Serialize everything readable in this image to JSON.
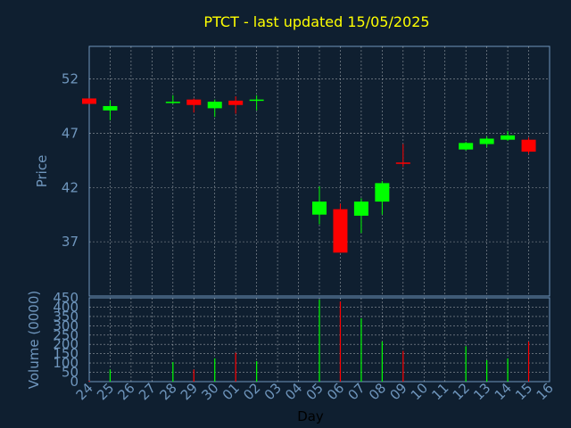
{
  "title": "PTCT - last updated 15/05/2025",
  "colors": {
    "background": "#0f1f30",
    "up": "#00ff00",
    "down": "#ff0000",
    "grid": "#ffffff",
    "text": "#6f96bd",
    "title": "#ffff00"
  },
  "chart_data": [
    {
      "type": "candlestick",
      "ylabel": "Price",
      "ylim": [
        32,
        55
      ],
      "yticks": [
        37,
        42,
        47,
        52
      ],
      "grid": true,
      "days": [
        "24",
        "25",
        "26",
        "27",
        "28",
        "29",
        "30",
        "01",
        "02",
        "03",
        "04",
        "05",
        "06",
        "07",
        "08",
        "09",
        "10",
        "11",
        "12",
        "13",
        "14",
        "15",
        "16"
      ],
      "candles": [
        {
          "day": "24",
          "open": 50.2,
          "close": 49.7,
          "high": 50.2,
          "low": 49.7
        },
        {
          "day": "25",
          "open": 49.1,
          "close": 49.5,
          "high": 50.0,
          "low": 48.2
        },
        {
          "day": "28",
          "open": 49.8,
          "close": 49.9,
          "high": 50.5,
          "low": 49.7
        },
        {
          "day": "29",
          "open": 50.1,
          "close": 49.6,
          "high": 50.2,
          "low": 48.9
        },
        {
          "day": "30",
          "open": 49.3,
          "close": 49.9,
          "high": 50.1,
          "low": 48.5
        },
        {
          "day": "01",
          "open": 50.0,
          "close": 49.6,
          "high": 50.4,
          "low": 48.8
        },
        {
          "day": "02",
          "open": 50.0,
          "close": 50.1,
          "high": 50.5,
          "low": 49.1
        },
        {
          "day": "05",
          "open": 39.5,
          "close": 40.7,
          "high": 42.1,
          "low": 38.6
        },
        {
          "day": "06",
          "open": 40.0,
          "close": 36.0,
          "high": 40.5,
          "low": 36.0
        },
        {
          "day": "07",
          "open": 39.4,
          "close": 40.7,
          "high": 41.0,
          "low": 37.8
        },
        {
          "day": "08",
          "open": 40.7,
          "close": 42.4,
          "high": 42.6,
          "low": 39.5
        },
        {
          "day": "09",
          "open": 44.3,
          "close": 44.2,
          "high": 46.0,
          "low": 43.9
        },
        {
          "day": "12",
          "open": 45.5,
          "close": 46.1,
          "high": 46.2,
          "low": 45.4
        },
        {
          "day": "13",
          "open": 46.0,
          "close": 46.5,
          "high": 46.7,
          "low": 45.7
        },
        {
          "day": "14",
          "open": 46.4,
          "close": 46.8,
          "high": 47.2,
          "low": 46.3
        },
        {
          "day": "15",
          "open": 46.4,
          "close": 45.3,
          "high": 46.6,
          "low": 45.1
        }
      ]
    },
    {
      "type": "bar",
      "ylabel": "Volume (0000)",
      "xlabel": "Day",
      "ylim": [
        0,
        450
      ],
      "yticks": [
        0,
        50,
        100,
        150,
        200,
        250,
        300,
        350,
        400,
        450
      ],
      "grid": true,
      "bars": [
        {
          "day": "24",
          "value": 5,
          "direction": "down"
        },
        {
          "day": "25",
          "value": 65,
          "direction": "up"
        },
        {
          "day": "28",
          "value": 105,
          "direction": "up"
        },
        {
          "day": "29",
          "value": 65,
          "direction": "down"
        },
        {
          "day": "30",
          "value": 125,
          "direction": "up"
        },
        {
          "day": "01",
          "value": 155,
          "direction": "down"
        },
        {
          "day": "02",
          "value": 110,
          "direction": "up"
        },
        {
          "day": "05",
          "value": 440,
          "direction": "up"
        },
        {
          "day": "06",
          "value": 430,
          "direction": "down"
        },
        {
          "day": "07",
          "value": 340,
          "direction": "up"
        },
        {
          "day": "08",
          "value": 215,
          "direction": "up"
        },
        {
          "day": "09",
          "value": 165,
          "direction": "down"
        },
        {
          "day": "12",
          "value": 190,
          "direction": "up"
        },
        {
          "day": "13",
          "value": 115,
          "direction": "up"
        },
        {
          "day": "14",
          "value": 125,
          "direction": "up"
        },
        {
          "day": "15",
          "value": 215,
          "direction": "down"
        }
      ]
    }
  ]
}
